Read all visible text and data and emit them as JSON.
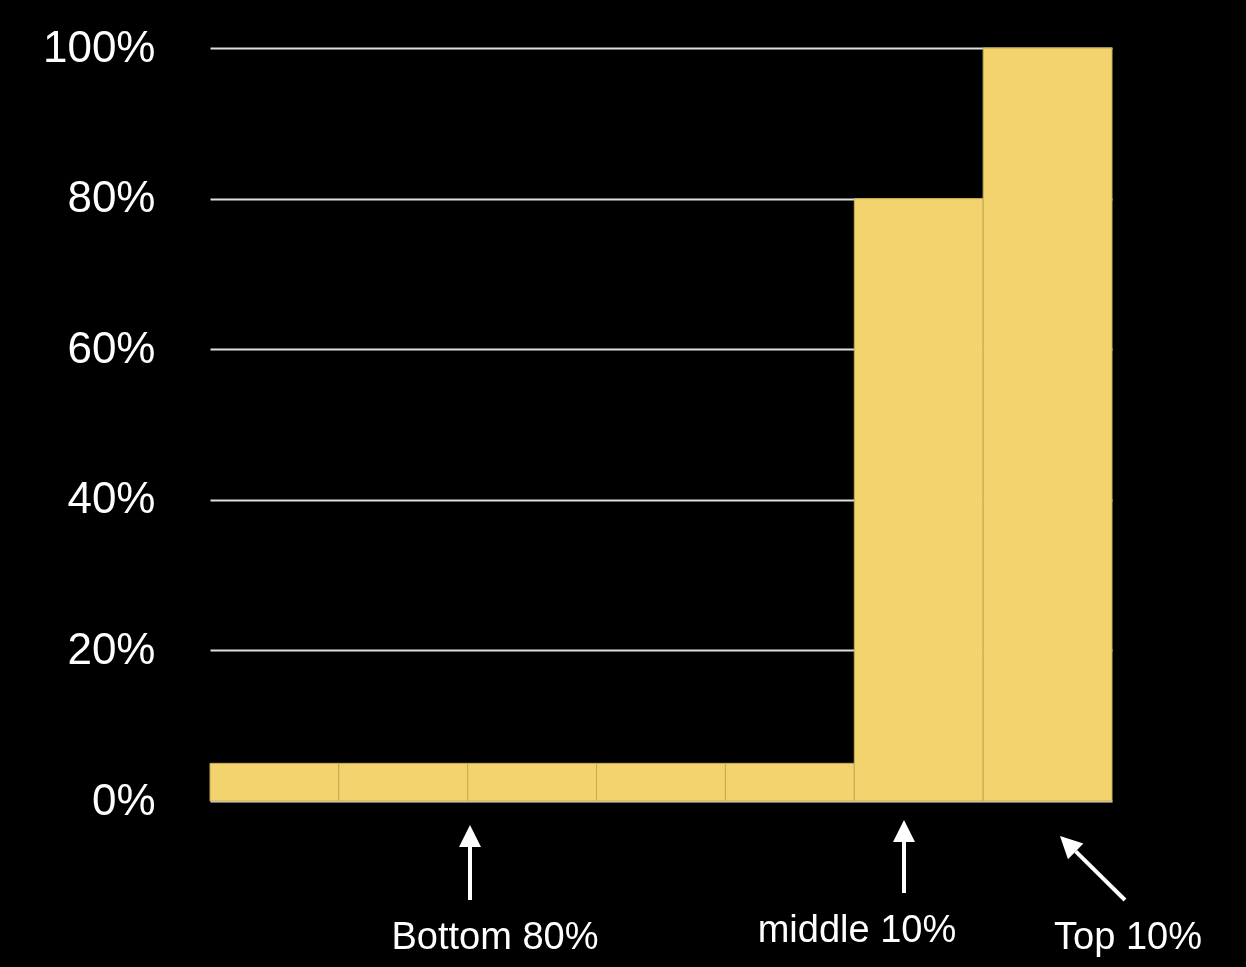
{
  "chart_data": {
    "type": "bar",
    "categories": [
      null,
      null,
      null,
      null,
      null,
      null,
      null
    ],
    "values": [
      5,
      5,
      5,
      5,
      5,
      80,
      100
    ],
    "color": "#f2d36e",
    "ylim": [
      0,
      100
    ],
    "yticks": [
      {
        "value": 0,
        "label": "0%"
      },
      {
        "value": 20,
        "label": "20%"
      },
      {
        "value": 40,
        "label": "40%"
      },
      {
        "value": 60,
        "label": "60%"
      },
      {
        "value": 80,
        "label": "80%"
      },
      {
        "value": 100,
        "label": "100%"
      }
    ],
    "grid": "y",
    "tick_labels": "y",
    "annotations": [
      "Bottom 80%",
      "middle 10%",
      "Top 10%"
    ]
  }
}
